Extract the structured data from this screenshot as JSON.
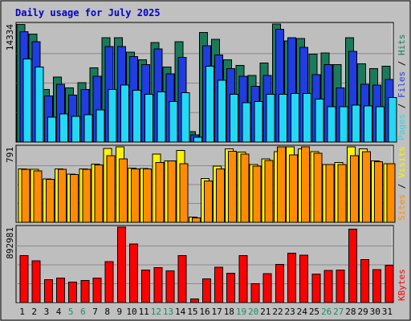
{
  "title": "Daily usage for July 2025",
  "colors": {
    "frame": "#C0C0C0",
    "panel": "#BEBEBE",
    "title": "#0000CC",
    "hits": "#1A7A5A",
    "files": "#1F3DE0",
    "pages": "#22D8F5",
    "visits": "#FFF200",
    "sites": "#FF8C00",
    "kbytes": "#FF0000",
    "weekend": "#1A8C6A",
    "weekday": "#0000CC"
  },
  "chart_data": [
    {
      "type": "bar",
      "panel": "hits-files-pages",
      "ymax_label": "14334",
      "legend": [
        "Pages",
        "/",
        "Files",
        "/",
        "Hits"
      ],
      "categories": [
        "1",
        "2",
        "3",
        "4",
        "5",
        "6",
        "7",
        "8",
        "9",
        "10",
        "11",
        "12",
        "13",
        "14",
        "15",
        "16",
        "17",
        "18",
        "19",
        "20",
        "21",
        "22",
        "23",
        "24",
        "25",
        "26",
        "27",
        "28",
        "29",
        "30",
        "31"
      ],
      "ylim": [
        0,
        14334
      ],
      "series": [
        {
          "name": "Hits",
          "values": [
            14300,
            13100,
            6400,
            7900,
            6600,
            7200,
            9000,
            12700,
            12700,
            10900,
            10000,
            12100,
            9100,
            12200,
            1250,
            13300,
            12500,
            10000,
            9300,
            8100,
            9600,
            14334,
            12300,
            12600,
            10700,
            10800,
            9400,
            12700,
            9500,
            8900,
            9200
          ]
        },
        {
          "name": "Files",
          "values": [
            13400,
            12200,
            5600,
            7000,
            5700,
            6400,
            8000,
            11600,
            11600,
            10400,
            9400,
            11300,
            8300,
            10300,
            900,
            11700,
            10600,
            8900,
            8000,
            6800,
            8100,
            13700,
            12700,
            11500,
            8200,
            9400,
            6600,
            11000,
            7000,
            6900,
            7600
          ]
        },
        {
          "name": "Pages",
          "values": [
            10100,
            9100,
            3000,
            3400,
            3100,
            3300,
            3900,
            6400,
            6900,
            6300,
            5800,
            6100,
            4900,
            6000,
            600,
            9200,
            7500,
            5800,
            4800,
            4900,
            5800,
            5800,
            5900,
            5900,
            5200,
            4300,
            4300,
            4500,
            4400,
            4300,
            5400
          ]
        }
      ]
    },
    {
      "type": "bar",
      "panel": "sites-visits",
      "ymax_label": "791",
      "legend": [
        "Sites",
        "/",
        "Visits"
      ],
      "categories": [
        "1",
        "2",
        "3",
        "4",
        "5",
        "6",
        "7",
        "8",
        "9",
        "10",
        "11",
        "12",
        "13",
        "14",
        "15",
        "16",
        "17",
        "18",
        "19",
        "20",
        "21",
        "22",
        "23",
        "24",
        "25",
        "26",
        "27",
        "28",
        "29",
        "30",
        "31"
      ],
      "ylim": [
        0,
        791
      ],
      "series": [
        {
          "name": "Visits",
          "values": [
            560,
            555,
            455,
            560,
            505,
            560,
            610,
            775,
            791,
            570,
            565,
            715,
            645,
            755,
            55,
            460,
            590,
            770,
            735,
            605,
            665,
            740,
            791,
            770,
            740,
            605,
            625,
            791,
            770,
            645,
            615
          ]
        },
        {
          "name": "Sites",
          "values": [
            555,
            540,
            450,
            555,
            500,
            555,
            600,
            700,
            665,
            560,
            560,
            625,
            645,
            615,
            45,
            435,
            560,
            745,
            715,
            590,
            650,
            791,
            705,
            791,
            725,
            605,
            605,
            700,
            740,
            635,
            615
          ]
        }
      ]
    },
    {
      "type": "bar",
      "panel": "kbytes",
      "ymax_label": "892981",
      "legend": [
        "KBytes"
      ],
      "categories": [
        "1",
        "2",
        "3",
        "4",
        "5",
        "6",
        "7",
        "8",
        "9",
        "10",
        "11",
        "12",
        "13",
        "14",
        "15",
        "16",
        "17",
        "18",
        "19",
        "20",
        "21",
        "22",
        "23",
        "24",
        "25",
        "26",
        "27",
        "28",
        "29",
        "30",
        "31"
      ],
      "ylim": [
        0,
        892981
      ],
      "series": [
        {
          "name": "KBytes",
          "values": [
            555000,
            495000,
            270000,
            290000,
            240000,
            260000,
            290000,
            485000,
            892981,
            695000,
            385000,
            415000,
            375000,
            555000,
            45000,
            280000,
            420000,
            345000,
            555000,
            225000,
            340000,
            450000,
            585000,
            560000,
            335000,
            380000,
            385000,
            870000,
            510000,
            390000,
            440000
          ]
        }
      ]
    }
  ],
  "x_labels": [
    "1",
    "2",
    "3",
    "4",
    "5",
    "6",
    "7",
    "8",
    "9",
    "10",
    "11",
    "12",
    "13",
    "14",
    "15",
    "16",
    "17",
    "18",
    "19",
    "20",
    "21",
    "22",
    "23",
    "24",
    "25",
    "26",
    "27",
    "28",
    "29",
    "30",
    "31"
  ],
  "weekend_days": [
    "5",
    "6",
    "12",
    "13",
    "19",
    "20",
    "26",
    "27"
  ]
}
